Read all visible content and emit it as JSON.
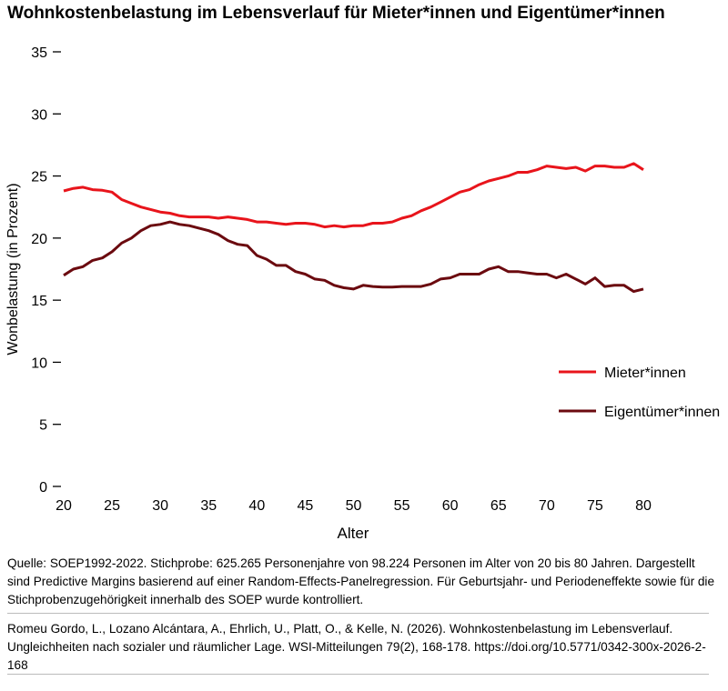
{
  "chart_data": {
    "type": "line",
    "title": "Wohnkostenbelastung im Lebensverlauf für Mieter*innen und Eigentümer*innen",
    "xlabel": "Alter",
    "ylabel": "Wonbelastung (in Prozent)",
    "xlim": [
      20,
      80
    ],
    "ylim": [
      0,
      35
    ],
    "xticks": [
      20,
      25,
      30,
      35,
      40,
      45,
      50,
      55,
      60,
      65,
      70,
      75,
      80
    ],
    "yticks": [
      0,
      5,
      10,
      15,
      20,
      25,
      30,
      35
    ],
    "legend": "right",
    "x": [
      20,
      21,
      22,
      23,
      24,
      25,
      26,
      27,
      28,
      29,
      30,
      31,
      32,
      33,
      34,
      35,
      36,
      37,
      38,
      39,
      40,
      41,
      42,
      43,
      44,
      45,
      46,
      47,
      48,
      49,
      50,
      51,
      52,
      53,
      54,
      55,
      56,
      57,
      58,
      59,
      60,
      61,
      62,
      63,
      64,
      65,
      66,
      67,
      68,
      69,
      70,
      71,
      72,
      73,
      74,
      75,
      76,
      77,
      78,
      79,
      80
    ],
    "series": [
      {
        "name": "Mieter*innen",
        "color": "#e8141b",
        "values": [
          23.8,
          24.0,
          24.1,
          23.9,
          23.85,
          23.7,
          23.1,
          22.8,
          22.5,
          22.3,
          22.1,
          22.0,
          21.8,
          21.7,
          21.7,
          21.7,
          21.6,
          21.7,
          21.6,
          21.5,
          21.3,
          21.3,
          21.2,
          21.1,
          21.2,
          21.2,
          21.1,
          20.9,
          21.0,
          20.9,
          21.0,
          21.0,
          21.2,
          21.2,
          21.3,
          21.6,
          21.8,
          22.2,
          22.5,
          22.9,
          23.3,
          23.7,
          23.9,
          24.3,
          24.6,
          24.8,
          25.0,
          25.3,
          25.3,
          25.5,
          25.8,
          25.7,
          25.6,
          25.7,
          25.4,
          25.8,
          25.8,
          25.7,
          25.7,
          26.0,
          25.5
        ]
      },
      {
        "name": "Eigentümer*innen",
        "color": "#6b0a0f",
        "values": [
          17.0,
          17.5,
          17.7,
          18.2,
          18.4,
          18.9,
          19.6,
          20.0,
          20.6,
          21.0,
          21.1,
          21.3,
          21.1,
          21.0,
          20.8,
          20.6,
          20.3,
          19.8,
          19.5,
          19.4,
          18.6,
          18.3,
          17.8,
          17.8,
          17.3,
          17.1,
          16.7,
          16.6,
          16.2,
          16.0,
          15.9,
          16.2,
          16.1,
          16.05,
          16.05,
          16.1,
          16.1,
          16.1,
          16.3,
          16.7,
          16.8,
          17.1,
          17.1,
          17.1,
          17.5,
          17.7,
          17.3,
          17.3,
          17.2,
          17.1,
          17.1,
          16.8,
          17.1,
          16.7,
          16.3,
          16.8,
          16.1,
          16.2,
          16.2,
          15.7,
          15.9
        ]
      }
    ]
  },
  "footer": {
    "source": "Quelle: SOEP1992-2022. Stichprobe: 625.265 Personenjahre von 98.224 Personen im Alter von 20 bis 80 Jahren. Dargestellt sind Predictive Margins basierend auf einer Random-Effects-Panelregression. Für Geburtsjahr- und Periodeneffekte sowie für die Stichprobenzugehörigkeit innerhalb des SOEP wurde kontrolliert.",
    "citation": "Romeu Gordo, L., Lozano Alcántara, A., Ehrlich, U., Platt, O., & Kelle, N. (2026). Wohnkostenbelastung im Lebensverlauf. Ungleichheiten nach sozialer und räumlicher Lage. WSI-Mitteilungen 79(2), 168-178. https://doi.org/10.5771/0342-300x-2026-2-168"
  }
}
